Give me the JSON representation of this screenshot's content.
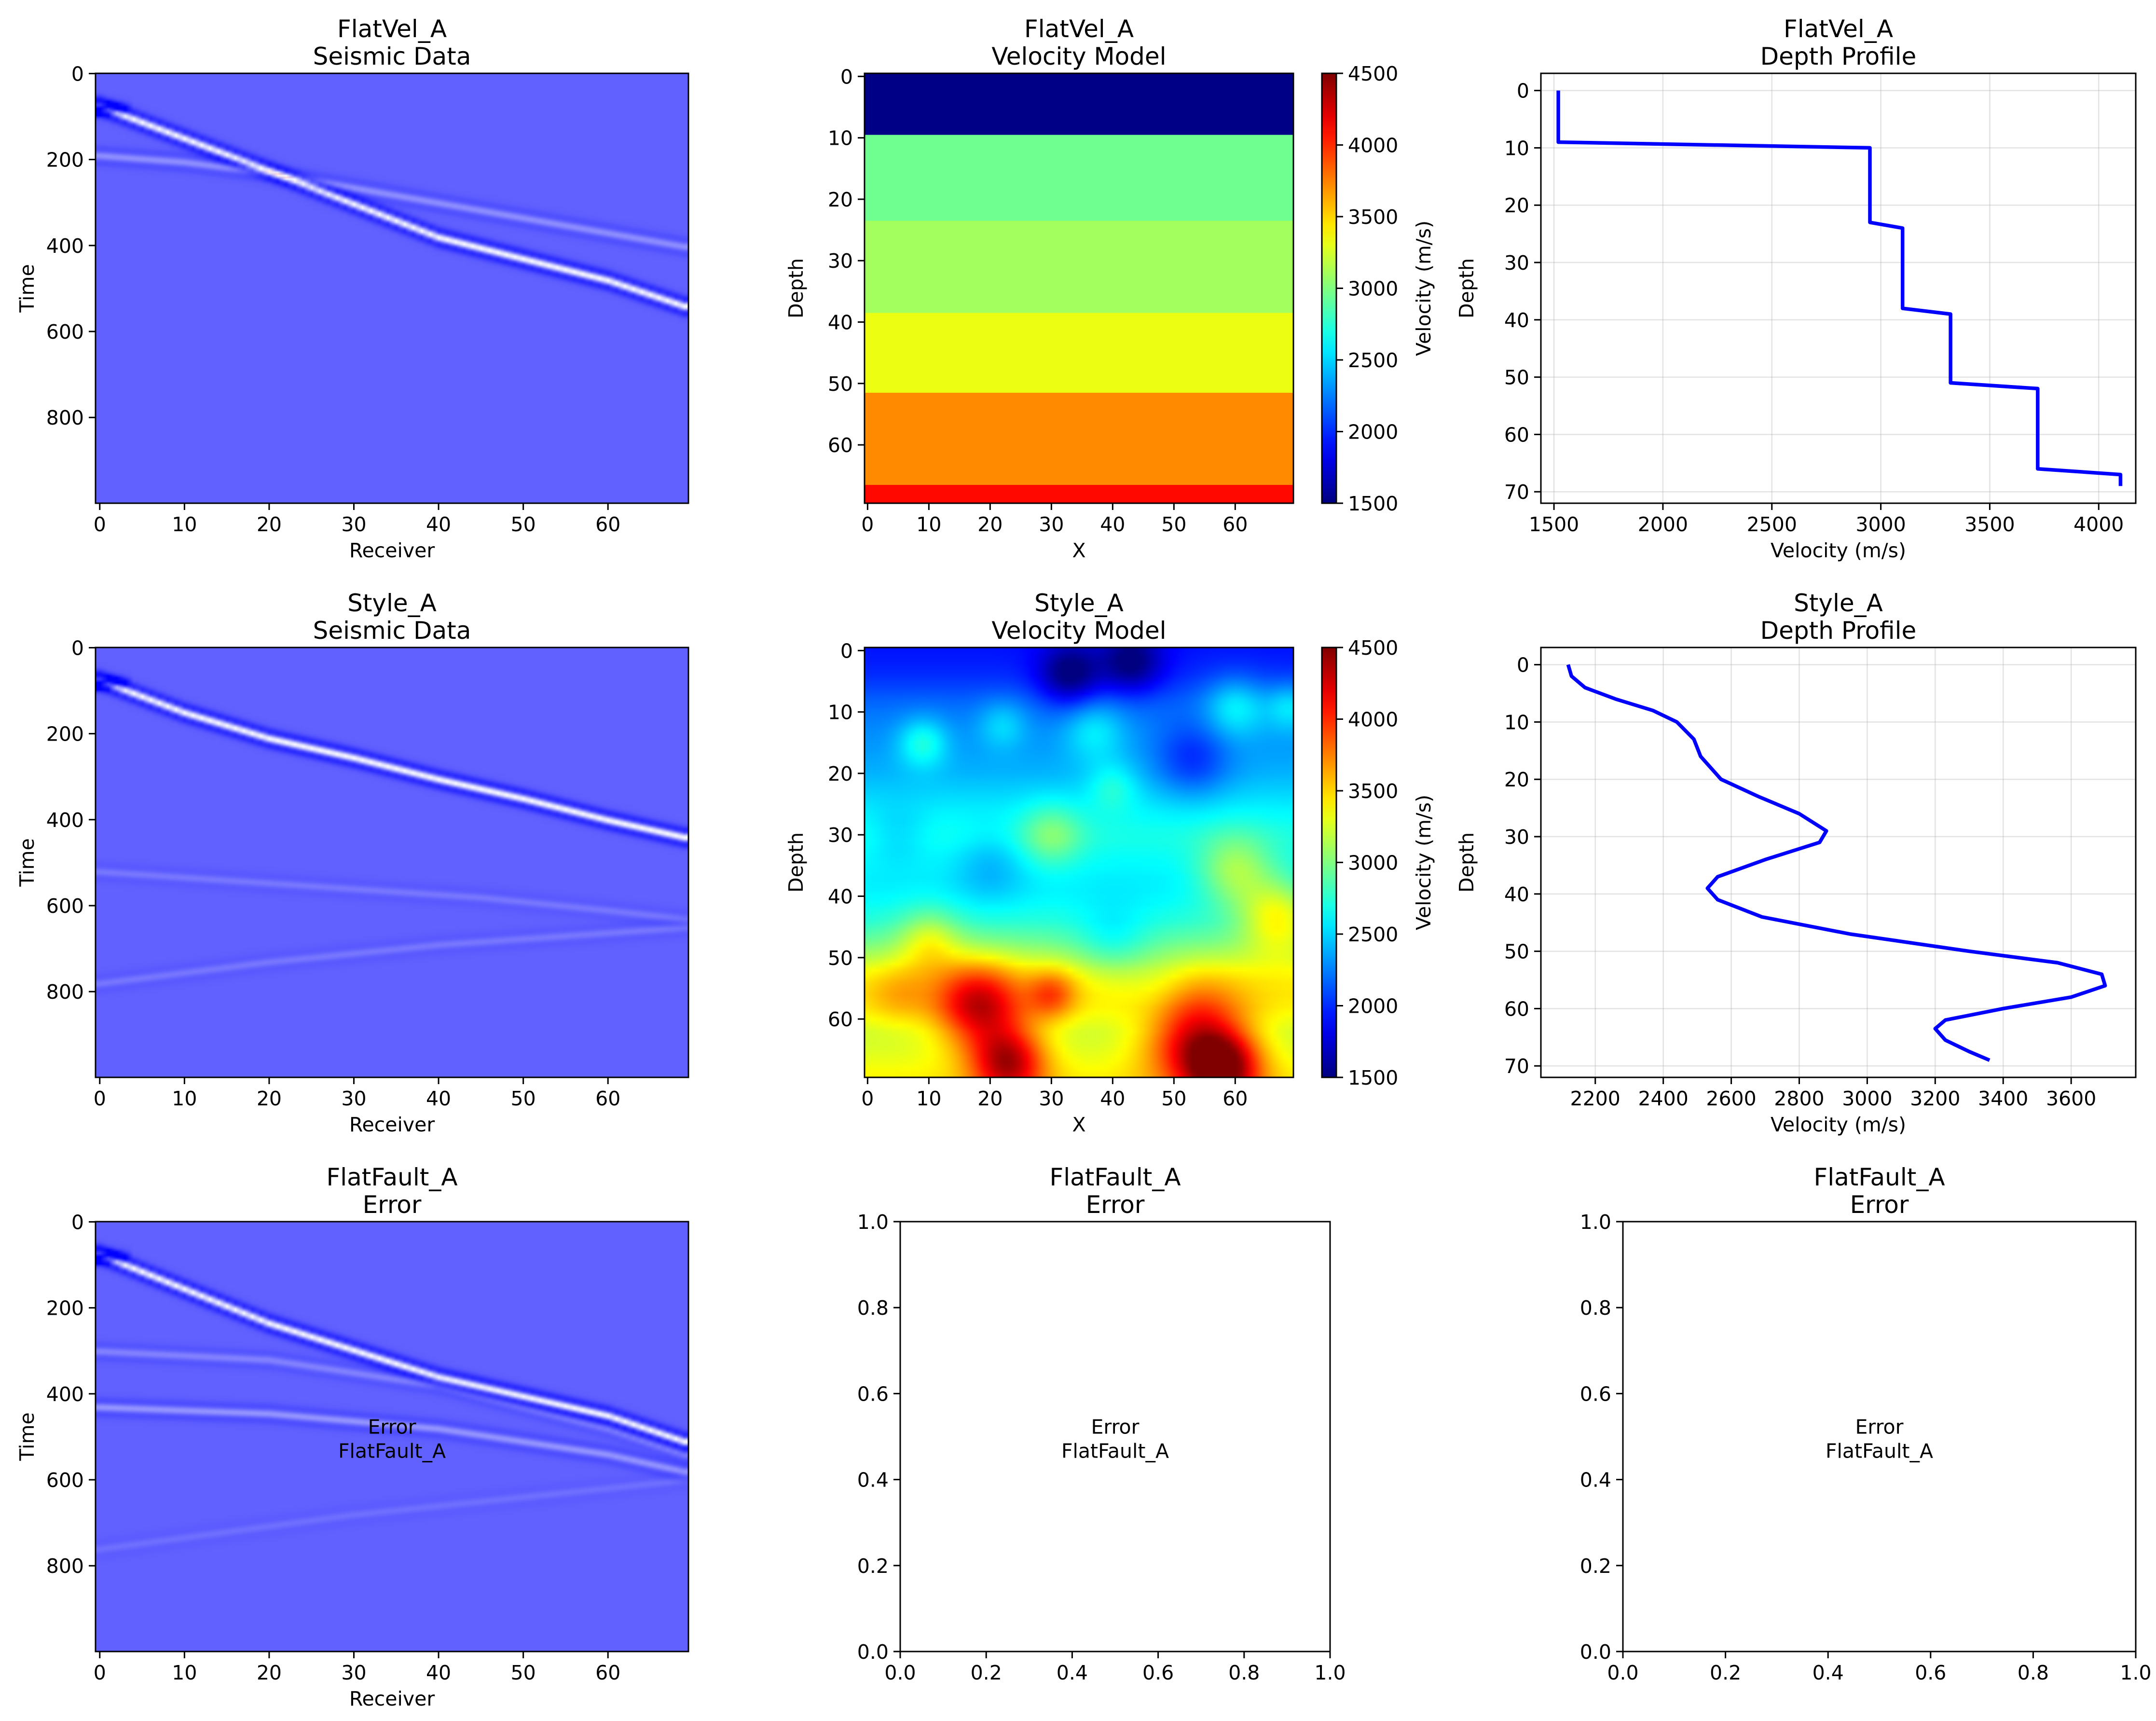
{
  "figure": {
    "background": "#ffffff"
  },
  "colors": {
    "seismic_base": "#6262ff",
    "profile_line": "#0000ff",
    "error_text": "#000000"
  },
  "colormaps": {
    "seismic": "bwr",
    "velocity": "jet"
  },
  "chart_data": [
    {
      "id": "flatvel-seismic",
      "type": "heatmap",
      "title_line1": "FlatVel_A",
      "title_line2": "Seismic Data",
      "xlabel": "Receiver",
      "ylabel": "Time",
      "xlim": [
        0,
        69
      ],
      "ylim": [
        999,
        0
      ],
      "xticks": [
        0,
        10,
        20,
        30,
        40,
        50,
        60
      ],
      "yticks": [
        0,
        200,
        400,
        600,
        800
      ],
      "events": [
        {
          "receivers": [
            0,
            20,
            40,
            60,
            69
          ],
          "times": [
            75,
            225,
            380,
            480,
            540
          ],
          "strength": 1.0
        },
        {
          "receivers": [
            0,
            10,
            20,
            30
          ],
          "times": [
            190,
            205,
            230,
            265
          ],
          "strength": 0.25
        }
      ]
    },
    {
      "id": "flatvel-velocity",
      "type": "heatmap",
      "title_line1": "FlatVel_A",
      "title_line2": "Velocity Model",
      "xlabel": "X",
      "ylabel": "Depth",
      "xlim": [
        0,
        69
      ],
      "ylim": [
        69,
        0
      ],
      "xticks": [
        0,
        10,
        20,
        30,
        40,
        50,
        60
      ],
      "yticks": [
        0,
        10,
        20,
        30,
        40,
        50,
        60
      ],
      "colorbar": {
        "label": "Velocity (m/s)",
        "vmin": 1500,
        "vmax": 4500,
        "ticks": [
          1500,
          2000,
          2500,
          3000,
          3500,
          4000,
          4500
        ]
      },
      "layers": [
        {
          "top": 0,
          "bottom": 9,
          "velocity": 1520
        },
        {
          "top": 10,
          "bottom": 23,
          "velocity": 2950
        },
        {
          "top": 24,
          "bottom": 38,
          "velocity": 3100
        },
        {
          "top": 39,
          "bottom": 51,
          "velocity": 3320
        },
        {
          "top": 52,
          "bottom": 66,
          "velocity": 3720
        },
        {
          "top": 67,
          "bottom": 69,
          "velocity": 4100
        }
      ]
    },
    {
      "id": "flatvel-profile",
      "type": "line",
      "title_line1": "FlatVel_A",
      "title_line2": "Depth Profile",
      "xlabel": "Velocity (m/s)",
      "ylabel": "Depth",
      "xlim": [
        1440,
        4170
      ],
      "ylim": [
        72,
        -3
      ],
      "xticks": [
        1500,
        2000,
        2500,
        3000,
        3500,
        4000
      ],
      "yticks": [
        0,
        10,
        20,
        30,
        40,
        50,
        60,
        70
      ],
      "grid": true,
      "x": [
        1520,
        1520,
        2950,
        2950,
        3100,
        3100,
        3320,
        3320,
        3720,
        3720,
        4100,
        4100
      ],
      "y": [
        0,
        9,
        10,
        23,
        24,
        38,
        39,
        51,
        52,
        66,
        67,
        69
      ]
    },
    {
      "id": "style-seismic",
      "type": "heatmap",
      "title_line1": "Style_A",
      "title_line2": "Seismic Data",
      "xlabel": "Receiver",
      "ylabel": "Time",
      "xlim": [
        0,
        69
      ],
      "ylim": [
        999,
        0
      ],
      "xticks": [
        0,
        10,
        20,
        30,
        40,
        50,
        60
      ],
      "yticks": [
        0,
        200,
        400,
        600,
        800
      ],
      "events": [
        {
          "receivers": [
            0,
            10,
            20,
            30,
            40,
            50,
            60,
            69
          ],
          "times": [
            75,
            150,
            210,
            255,
            305,
            350,
            400,
            440
          ],
          "strength": 1.0
        },
        {
          "receivers": [
            0,
            20,
            40,
            69
          ],
          "times": [
            780,
            730,
            690,
            650
          ],
          "strength": 0.12
        },
        {
          "receivers": [
            30,
            45,
            60,
            69
          ],
          "times": [
            560,
            580,
            610,
            630
          ],
          "strength": 0.12
        }
      ]
    },
    {
      "id": "style-velocity",
      "type": "heatmap",
      "title_line1": "Style_A",
      "title_line2": "Velocity Model",
      "xlabel": "X",
      "ylabel": "Depth",
      "xlim": [
        0,
        69
      ],
      "ylim": [
        69,
        0
      ],
      "xticks": [
        0,
        10,
        20,
        30,
        40,
        50,
        60
      ],
      "yticks": [
        0,
        10,
        20,
        30,
        40,
        50,
        60
      ],
      "colorbar": {
        "label": "Velocity (m/s)",
        "vmin": 1500,
        "vmax": 4500,
        "ticks": [
          1500,
          2000,
          2500,
          3000,
          3500,
          4000,
          4500
        ]
      }
    },
    {
      "id": "style-profile",
      "type": "line",
      "title_line1": "Style_A",
      "title_line2": "Depth Profile",
      "xlabel": "Velocity (m/s)",
      "ylabel": "Depth",
      "xlim": [
        2040,
        3790
      ],
      "ylim": [
        72,
        -3
      ],
      "xticks": [
        2200,
        2400,
        2600,
        2800,
        3000,
        3200,
        3400,
        3600
      ],
      "yticks": [
        0,
        10,
        20,
        30,
        40,
        50,
        60,
        70
      ],
      "grid": true,
      "x": [
        2120,
        2130,
        2170,
        2260,
        2370,
        2440,
        2490,
        2510,
        2570,
        2680,
        2800,
        2880,
        2860,
        2700,
        2560,
        2530,
        2560,
        2690,
        2950,
        3300,
        3560,
        3690,
        3700,
        3600,
        3400,
        3230,
        3200,
        3230,
        3300,
        3360
      ],
      "y": [
        0,
        2,
        4,
        6,
        8,
        10,
        13,
        16,
        20,
        23,
        26,
        29,
        31,
        34,
        37,
        39,
        41,
        44,
        47,
        50,
        52,
        54,
        56,
        58,
        60,
        62,
        63.5,
        65.5,
        67.5,
        69
      ]
    },
    {
      "id": "flatfault-seismic",
      "type": "heatmap",
      "title_line1": "FlatFault_A",
      "title_line2": "Error",
      "xlabel": "Receiver",
      "ylabel": "Time",
      "xlim": [
        0,
        69
      ],
      "ylim": [
        999,
        0
      ],
      "xticks": [
        0,
        10,
        20,
        30,
        40,
        50,
        60
      ],
      "yticks": [
        0,
        200,
        400,
        600,
        800
      ],
      "annotation_line1": "Error",
      "annotation_line2": "FlatFault_A",
      "events": [
        {
          "receivers": [
            0,
            20,
            40,
            60,
            69
          ],
          "times": [
            75,
            235,
            360,
            450,
            510
          ],
          "strength": 1.0
        },
        {
          "receivers": [
            0,
            20,
            40,
            60,
            69
          ],
          "times": [
            300,
            320,
            380,
            480,
            540
          ],
          "strength": 0.18
        },
        {
          "receivers": [
            0,
            20,
            40,
            60,
            69
          ],
          "times": [
            430,
            445,
            480,
            540,
            580
          ],
          "strength": 0.28
        },
        {
          "receivers": [
            0,
            30,
            69
          ],
          "times": [
            760,
            680,
            600
          ],
          "strength": 0.08
        }
      ]
    },
    {
      "id": "flatfault-velocity",
      "type": "line",
      "title_line1": "FlatFault_A",
      "title_line2": "Error",
      "xlim": [
        0,
        1
      ],
      "ylim": [
        0,
        1
      ],
      "xticks": [
        0.0,
        0.2,
        0.4,
        0.6,
        0.8,
        1.0
      ],
      "yticks": [
        0.0,
        0.2,
        0.4,
        0.6,
        0.8,
        1.0
      ],
      "tick_format": "0.0",
      "annotation_line1": "Error",
      "annotation_line2": "FlatFault_A"
    },
    {
      "id": "flatfault-profile",
      "type": "line",
      "title_line1": "FlatFault_A",
      "title_line2": "Error",
      "xlim": [
        0,
        1
      ],
      "ylim": [
        0,
        1
      ],
      "xticks": [
        0.0,
        0.2,
        0.4,
        0.6,
        0.8,
        1.0
      ],
      "yticks": [
        0.0,
        0.2,
        0.4,
        0.6,
        0.8,
        1.0
      ],
      "tick_format": "0.0",
      "annotation_line1": "Error",
      "annotation_line2": "FlatFault_A"
    }
  ]
}
